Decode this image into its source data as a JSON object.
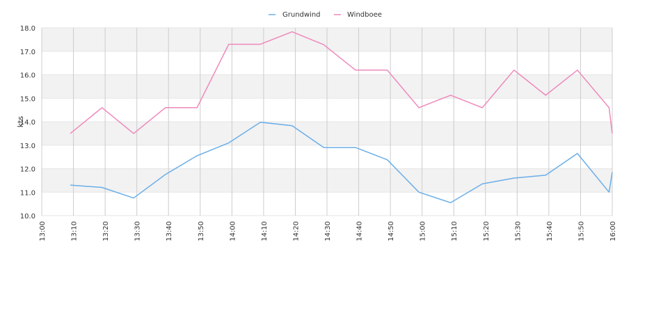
{
  "chart_data": {
    "type": "line",
    "ylabel": "kts",
    "ylim": [
      10,
      18
    ],
    "y_ticks": [
      "10.0",
      "11.0",
      "12.0",
      "13.0",
      "14.0",
      "15.0",
      "16.0",
      "17.0",
      "18.0"
    ],
    "x_ticks": [
      "13:00",
      "13:10",
      "13:20",
      "13:30",
      "13:40",
      "13:50",
      "14:00",
      "14:10",
      "14:20",
      "14:30",
      "14:40",
      "14:50",
      "15:00",
      "15:10",
      "15:20",
      "15:30",
      "15:40",
      "15:50",
      "16:00"
    ],
    "x_range": [
      "13:00",
      "16:00"
    ],
    "legend_position": "top-center",
    "grid": true,
    "series": [
      {
        "name": "Grundwind",
        "color": "#6aaee8",
        "x": [
          "13:09",
          "13:19",
          "13:29",
          "13:39",
          "13:49",
          "13:59",
          "14:09",
          "14:19",
          "14:29",
          "14:39",
          "14:49",
          "14:59",
          "15:09",
          "15:19",
          "15:29",
          "15:39",
          "15:49",
          "15:59",
          "16:00"
        ],
        "values": [
          11.3,
          11.2,
          10.75,
          11.75,
          12.55,
          13.1,
          13.98,
          13.83,
          12.9,
          12.9,
          12.38,
          11.0,
          10.55,
          11.35,
          11.6,
          11.72,
          12.65,
          11.0,
          11.85
        ]
      },
      {
        "name": "Windboee",
        "color": "#ee88bb",
        "x": [
          "13:09",
          "13:19",
          "13:29",
          "13:39",
          "13:49",
          "13:59",
          "14:09",
          "14:19",
          "14:29",
          "14:39",
          "14:49",
          "14:59",
          "15:09",
          "15:19",
          "15:29",
          "15:39",
          "15:49",
          "15:59",
          "16:00"
        ],
        "values": [
          13.5,
          14.6,
          13.5,
          14.6,
          14.6,
          17.3,
          17.3,
          17.83,
          17.28,
          16.2,
          16.2,
          14.6,
          15.13,
          14.6,
          16.2,
          15.13,
          16.2,
          14.6,
          13.5
        ]
      }
    ]
  }
}
